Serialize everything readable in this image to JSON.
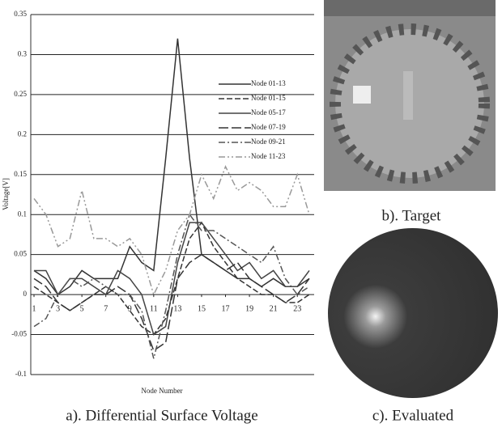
{
  "chart_data": {
    "type": "line",
    "x_label": "Node Number",
    "y_label": "Voltage[V]",
    "x": [
      1,
      2,
      3,
      4,
      5,
      6,
      7,
      8,
      9,
      10,
      11,
      12,
      13,
      14,
      15,
      16,
      17,
      18,
      19,
      20,
      21,
      22,
      23,
      24
    ],
    "xlim": [
      1,
      24
    ],
    "xticks": [
      1,
      3,
      5,
      7,
      9,
      11,
      13,
      15,
      17,
      19,
      21,
      23
    ],
    "ylim": [
      -0.1,
      0.35
    ],
    "yticks": [
      0.35,
      0.3,
      0.25,
      0.2,
      0.15,
      0.1,
      0.05,
      0,
      -0.05,
      -0.1
    ],
    "grid": true,
    "legend": "upper right",
    "series": [
      {
        "name": "Node 01-13",
        "color": "#333333",
        "dash": "solid",
        "values": [
          0.03,
          0.02,
          0.0,
          0.01,
          0.03,
          0.02,
          0.02,
          0.02,
          0.06,
          0.04,
          0.03,
          0.17,
          0.32,
          0.17,
          0.05,
          0.04,
          0.03,
          0.02,
          0.02,
          0.01,
          0.02,
          0.01,
          0.01,
          0.02
        ]
      },
      {
        "name": "Node 01-15",
        "color": "#333333",
        "dash": "dashed",
        "values": [
          0.01,
          0.0,
          -0.01,
          -0.02,
          -0.01,
          0.0,
          0.01,
          0.0,
          -0.02,
          -0.04,
          -0.05,
          -0.03,
          0.02,
          0.07,
          0.09,
          0.06,
          0.04,
          0.02,
          0.01,
          0.0,
          0.0,
          -0.01,
          -0.01,
          0.0
        ]
      },
      {
        "name": "Node 05-17",
        "color": "#444444",
        "dash": "solid",
        "values": [
          0.03,
          0.03,
          0.0,
          0.02,
          0.02,
          0.01,
          0.0,
          0.03,
          0.02,
          0.0,
          -0.05,
          -0.04,
          0.04,
          0.09,
          0.09,
          0.07,
          0.05,
          0.03,
          0.04,
          0.02,
          0.03,
          0.01,
          0.01,
          0.03
        ]
      },
      {
        "name": "Node 07-19",
        "color": "#333333",
        "dash": "longdash",
        "values": [
          0.02,
          0.01,
          -0.01,
          -0.02,
          -0.01,
          0.0,
          0.0,
          0.01,
          0.0,
          -0.03,
          -0.07,
          -0.06,
          0.02,
          0.04,
          0.05,
          0.04,
          0.03,
          0.04,
          0.02,
          0.01,
          0.0,
          -0.01,
          0.0,
          0.02
        ]
      },
      {
        "name": "Node 09-21",
        "color": "#555555",
        "dash": "dashdot",
        "values": [
          -0.04,
          -0.03,
          0.0,
          0.02,
          0.01,
          0.02,
          0.01,
          0.0,
          0.0,
          -0.02,
          -0.08,
          -0.02,
          0.05,
          0.1,
          0.08,
          0.08,
          0.07,
          0.06,
          0.05,
          0.04,
          0.06,
          0.02,
          0.0,
          0.01
        ]
      },
      {
        "name": "Node 11-23",
        "color": "#999999",
        "dash": "dashdotdot",
        "values": [
          0.12,
          0.1,
          0.06,
          0.07,
          0.13,
          0.07,
          0.07,
          0.06,
          0.07,
          0.05,
          0.0,
          0.03,
          0.08,
          0.1,
          0.15,
          0.12,
          0.16,
          0.13,
          0.14,
          0.13,
          0.11,
          0.11,
          0.15,
          0.1
        ]
      }
    ]
  },
  "captions": {
    "a": "a). Differential Surface Voltage",
    "b": "b). Target",
    "c": "c). Evaluated"
  }
}
